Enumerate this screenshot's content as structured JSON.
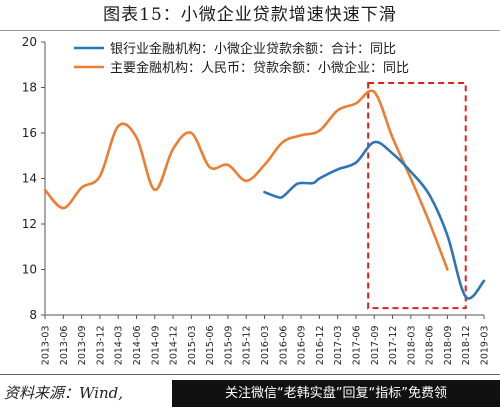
{
  "title": "图表15：小微企业贷款增速快速下滑",
  "source_text": "资料来源：Wind,",
  "banner_text": "关注微信“老韩实盘”回复“指标”免费领",
  "colors": {
    "bank_series": "#2E75B6",
    "major_series": "#ED7D31",
    "highlight_box": "#E0201B",
    "axis": "#555555"
  },
  "chart_data": {
    "type": "line",
    "title": "图表15：小微企业贷款增速快速下滑",
    "xlabel": "",
    "ylabel": "",
    "ylim": [
      8,
      20
    ],
    "yticks": [
      8,
      10,
      12,
      14,
      16,
      18,
      20
    ],
    "grid": false,
    "legend_position": "top-left",
    "x": [
      "2013-03",
      "2013-06",
      "2013-09",
      "2013-12",
      "2014-03",
      "2014-06",
      "2014-09",
      "2014-12",
      "2015-03",
      "2015-06",
      "2015-09",
      "2015-12",
      "2016-03",
      "2016-06",
      "2016-09",
      "2016-12",
      "2017-03",
      "2017-06",
      "2017-09",
      "2017-12",
      "2018-03",
      "2018-06",
      "2018-09",
      "2018-12",
      "2019-03"
    ],
    "series": [
      {
        "name": "银行业金融机构：小微企业贷款余额：合计：同比",
        "color": "#2E75B6",
        "points": [
          [
            "2016-03",
            13.4
          ],
          [
            "2016-05",
            13.2
          ],
          [
            "2016-06",
            13.2
          ],
          [
            "2016-08",
            13.7
          ],
          [
            "2016-09",
            13.8
          ],
          [
            "2016-11",
            13.8
          ],
          [
            "2016-12",
            14.0
          ],
          [
            "2017-03",
            14.4
          ],
          [
            "2017-06",
            14.7
          ],
          [
            "2017-09",
            15.6
          ],
          [
            "2017-12",
            15.1
          ],
          [
            "2018-03",
            14.3
          ],
          [
            "2018-06",
            13.3
          ],
          [
            "2018-09",
            11.5
          ],
          [
            "2018-12",
            8.8
          ],
          [
            "2019-03",
            9.5
          ]
        ]
      },
      {
        "name": "主要金融机构：人民币：贷款余额：小微企业：同比",
        "color": "#ED7D31",
        "points": [
          [
            "2013-03",
            13.5
          ],
          [
            "2013-06",
            12.7
          ],
          [
            "2013-09",
            13.6
          ],
          [
            "2013-12",
            14.1
          ],
          [
            "2014-03",
            16.3
          ],
          [
            "2014-06",
            15.8
          ],
          [
            "2014-09",
            13.5
          ],
          [
            "2014-12",
            15.3
          ],
          [
            "2015-03",
            16.0
          ],
          [
            "2015-06",
            14.5
          ],
          [
            "2015-09",
            14.6
          ],
          [
            "2015-12",
            13.9
          ],
          [
            "2016-03",
            14.6
          ],
          [
            "2016-06",
            15.6
          ],
          [
            "2016-09",
            15.9
          ],
          [
            "2016-12",
            16.1
          ],
          [
            "2017-03",
            17.0
          ],
          [
            "2017-06",
            17.3
          ],
          [
            "2017-09",
            17.8
          ],
          [
            "2017-12",
            15.8
          ],
          [
            "2018-03",
            14.0
          ],
          [
            "2018-06",
            12.1
          ],
          [
            "2018-09",
            10.0
          ]
        ]
      }
    ],
    "highlight_box": {
      "x_range": [
        "2017-08",
        "2018-12"
      ],
      "y_range": [
        8.3,
        18.2
      ]
    }
  }
}
